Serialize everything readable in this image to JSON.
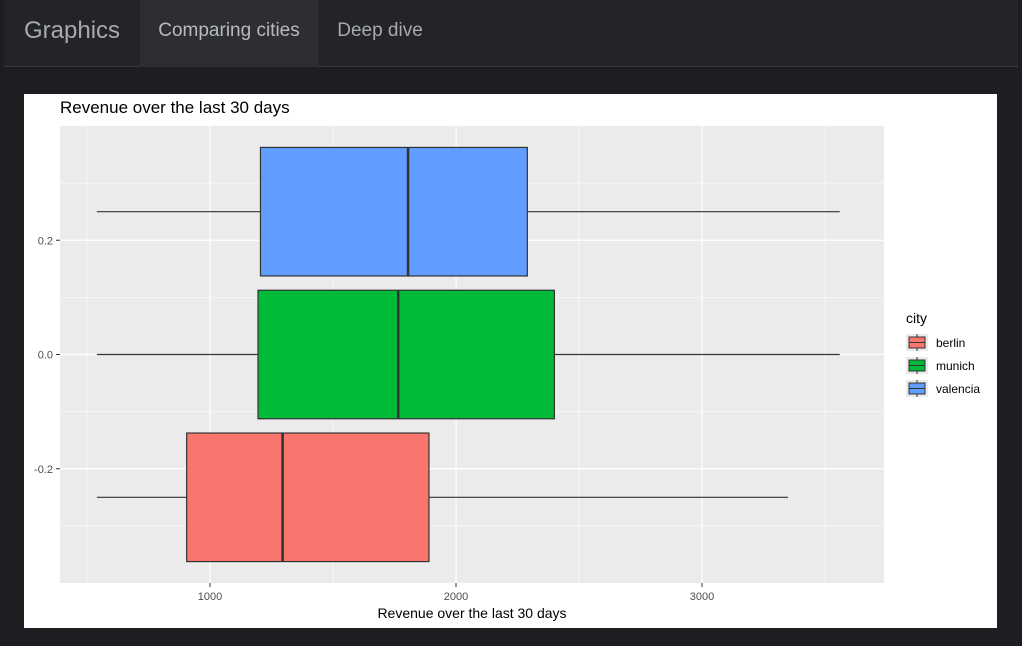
{
  "navbar": {
    "brand": "Graphics",
    "tabs": [
      {
        "label": "Comparing cities",
        "active": true
      },
      {
        "label": "Deep dive",
        "active": false
      }
    ]
  },
  "colors": {
    "page_bg": "#1c1e22",
    "navbar_bg": "#222428",
    "panel_bg": "#ebebeb",
    "berlin": "#F8766D",
    "munich": "#00BA38",
    "valencia": "#619CFF"
  },
  "chart_data": {
    "type": "boxplot",
    "title": "Revenue over the last 30 days",
    "xlabel": "Revenue over the last 30 days",
    "ylabel": "",
    "xlim": [
      390,
      3740
    ],
    "ylim": [
      -0.4,
      0.4
    ],
    "x_ticks": [
      1000,
      2000,
      3000
    ],
    "y_ticks": [
      0.2,
      0.0,
      -0.2
    ],
    "y_tick_labels": [
      "0.2",
      "0.0",
      "-0.2"
    ],
    "grid": true,
    "legend": {
      "title": "city",
      "position": "right",
      "entries": [
        "berlin",
        "munich",
        "valencia"
      ]
    },
    "series": [
      {
        "name": "berlin",
        "y_center": -0.25,
        "whisker_low": 540,
        "q1": 905,
        "median": 1295,
        "q3": 1890,
        "whisker_high": 3350
      },
      {
        "name": "munich",
        "y_center": 0.0,
        "whisker_low": 540,
        "q1": 1195,
        "median": 1765,
        "q3": 2400,
        "whisker_high": 3560
      },
      {
        "name": "valencia",
        "y_center": 0.25,
        "whisker_low": 540,
        "q1": 1205,
        "median": 1805,
        "q3": 2290,
        "whisker_high": 3560
      }
    ]
  }
}
